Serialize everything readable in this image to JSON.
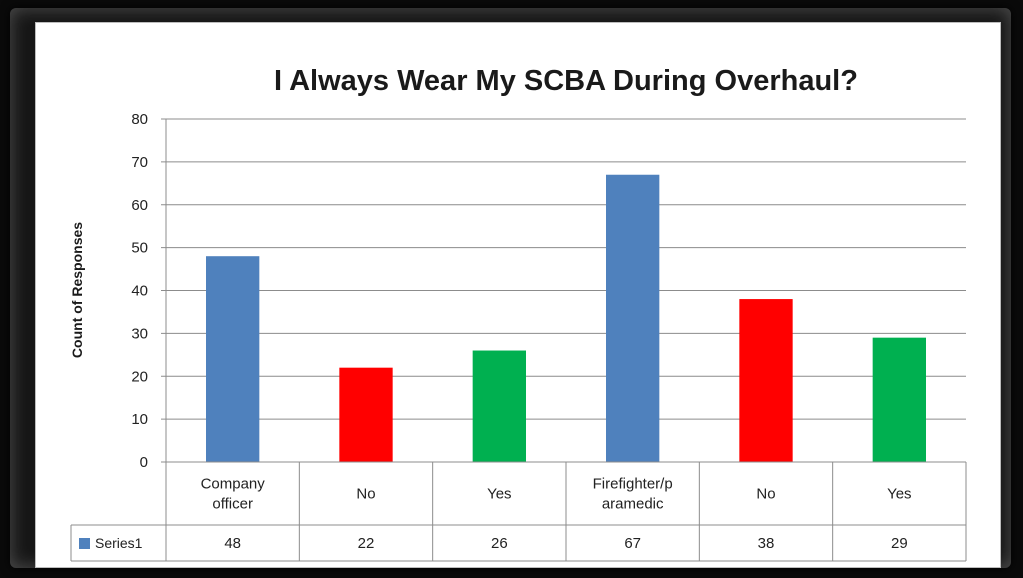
{
  "chart_data": {
    "type": "bar",
    "title": "I Always Wear My SCBA During Overhaul?",
    "xlabel": "",
    "ylabel": "Count of Responses",
    "ylim": [
      0,
      80
    ],
    "yticks": [
      0,
      10,
      20,
      30,
      40,
      50,
      60,
      70,
      80
    ],
    "grid": true,
    "categories": [
      "Company officer",
      "No",
      "Yes",
      "Firefighter/paramedic",
      "No",
      "Yes"
    ],
    "category_label_lines": [
      [
        "Company",
        "officer"
      ],
      [
        "No"
      ],
      [
        "Yes"
      ],
      [
        "Firefighter/p",
        "aramedic"
      ],
      [
        "No"
      ],
      [
        "Yes"
      ]
    ],
    "series": [
      {
        "name": "Series1",
        "values": [
          48,
          22,
          26,
          67,
          38,
          29
        ],
        "point_colors": [
          "#4f81bd",
          "#ff0000",
          "#00b050",
          "#4f81bd",
          "#ff0000",
          "#00b050"
        ],
        "legend_color": "#4f81bd"
      }
    ],
    "data_table": true
  }
}
